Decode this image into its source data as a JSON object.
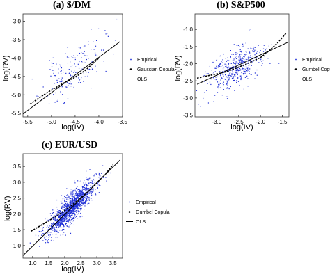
{
  "chart_data": [
    {
      "type": "scatter",
      "title": "(a) $/DM",
      "xlabel": "log(IV)",
      "ylabel": "log(RV)",
      "xlim": [
        -5.6,
        -3.5
      ],
      "ylim": [
        -5.6,
        -2.8
      ],
      "xticks": [
        -5.5,
        -5.0,
        -4.5,
        -4.0,
        -3.5
      ],
      "xtick_labels": [
        "-5.5",
        "-5.0",
        "-4.5",
        "-4.0",
        "-3.5"
      ],
      "yticks": [
        -5.5,
        -5.0,
        -4.5,
        -4.0,
        -3.5,
        -3.0
      ],
      "ytick_labels": [
        "-5.5",
        "-5.0",
        "-4.5",
        "-4.0",
        "-3.5",
        "-3.0"
      ],
      "grid": false,
      "legend": {
        "placement": "right",
        "entries": [
          "Empirical",
          "Gaussian Copula",
          "OLS"
        ]
      },
      "series": [
        {
          "name": "Empirical",
          "kind": "points",
          "center": [
            -4.55,
            -4.35
          ],
          "slope": 0.9,
          "x_sd": 0.32,
          "noise_sd": 0.32,
          "n": 170
        },
        {
          "name": "Gaussian Copula",
          "kind": "dashed-curve",
          "x": [
            -5.45,
            -5.1,
            -4.8,
            -4.5,
            -4.3,
            -4.15,
            -4.0
          ],
          "y": [
            -5.25,
            -4.95,
            -4.72,
            -4.52,
            -4.35,
            -4.18,
            -4.0
          ]
        },
        {
          "name": "OLS",
          "kind": "line",
          "x": [
            -5.6,
            -3.55
          ],
          "y": [
            -5.52,
            -3.55
          ]
        }
      ]
    },
    {
      "type": "scatter",
      "title": "(b) S&P500",
      "xlabel": "log(IV)",
      "ylabel": "log(RV)",
      "xlim": [
        -3.5,
        -1.35
      ],
      "ylim": [
        -3.55,
        -0.55
      ],
      "xticks": [
        -3.0,
        -2.5,
        -2.0,
        -1.5
      ],
      "xtick_labels": [
        "-3.0",
        "-2.5",
        "-2.0",
        "-1.5"
      ],
      "yticks": [
        -3.5,
        -3.0,
        -2.5,
        -2.0,
        -1.5,
        -1.0
      ],
      "ytick_labels": [
        "-3.5",
        "-3.0",
        "-2.5",
        "-2.0",
        "-1.5",
        "-1.0"
      ],
      "grid": false,
      "legend": {
        "placement": "right",
        "entries": [
          "Empirical",
          "Gumbel Copula",
          "OLS"
        ]
      },
      "series": [
        {
          "name": "Empirical",
          "kind": "points",
          "center": [
            -2.6,
            -2.15
          ],
          "slope": 0.6,
          "x_sd": 0.3,
          "noise_sd": 0.28,
          "n": 420
        },
        {
          "name": "Gumbel Copula",
          "kind": "dashed-curve",
          "x": [
            -3.45,
            -3.2,
            -3.0,
            -2.8,
            -2.6,
            -2.4,
            -2.2,
            -2.0,
            -1.8,
            -1.6,
            -1.42
          ],
          "y": [
            -2.42,
            -2.35,
            -2.3,
            -2.24,
            -2.15,
            -2.05,
            -1.94,
            -1.82,
            -1.62,
            -1.38,
            -1.12
          ]
        },
        {
          "name": "OLS",
          "kind": "line",
          "x": [
            -3.45,
            -1.38
          ],
          "y": [
            -2.6,
            -1.38
          ]
        }
      ]
    },
    {
      "type": "scatter",
      "title": "(c) EUR/USD",
      "xlabel": "log(IV)",
      "ylabel": "log(RV)",
      "xlim": [
        0.7,
        3.8
      ],
      "ylim": [
        0.6,
        3.9
      ],
      "xticks": [
        1.0,
        1.5,
        2.0,
        2.5,
        3.0,
        3.5
      ],
      "xtick_labels": [
        "1.0",
        "1.5",
        "2.0",
        "2.5",
        "3.0",
        "3.5"
      ],
      "yticks": [
        1.0,
        1.5,
        2.0,
        2.5,
        3.0,
        3.5
      ],
      "ytick_labels": [
        "1.0",
        "1.5",
        "2.0",
        "2.5",
        "3.0",
        "3.5"
      ],
      "grid": false,
      "legend": {
        "placement": "right",
        "entries": [
          "Empirical",
          "Gumbel Copula",
          "OLS"
        ]
      },
      "series": [
        {
          "name": "Empirical",
          "kind": "points",
          "center": [
            2.2,
            2.2
          ],
          "slope": 1.0,
          "x_sd": 0.38,
          "noise_sd": 0.22,
          "n": 1300
        },
        {
          "name": "Gumbel Copula",
          "kind": "dashed-curve",
          "x": [
            0.95,
            1.2,
            1.5,
            1.8,
            2.1,
            2.4,
            2.7,
            3.0,
            3.3,
            3.5
          ],
          "y": [
            1.45,
            1.6,
            1.78,
            1.97,
            2.18,
            2.42,
            2.68,
            2.98,
            3.3,
            3.55
          ]
        },
        {
          "name": "OLS",
          "kind": "line",
          "x": [
            0.7,
            3.72
          ],
          "y": [
            0.68,
            3.7
          ]
        }
      ]
    }
  ]
}
